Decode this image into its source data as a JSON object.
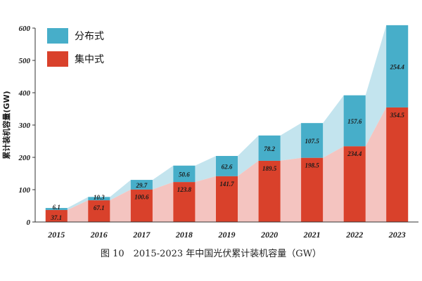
{
  "chart_data": {
    "type": "bar",
    "stacked": true,
    "categories": [
      "2015",
      "2016",
      "2017",
      "2018",
      "2019",
      "2020",
      "2021",
      "2022",
      "2023"
    ],
    "series": [
      {
        "name": "集中式",
        "color": "#d9412b",
        "area_color": "#f4c4c0",
        "values": [
          37.1,
          67.1,
          100.6,
          123.8,
          141.7,
          189.5,
          198.5,
          234.4,
          354.5
        ],
        "labels": [
          "37.1",
          "67.1",
          "100.6",
          "123.8",
          "141.7",
          "189.5",
          "198.5",
          "234.4",
          "354.5"
        ]
      },
      {
        "name": "分布式",
        "color": "#47aec9",
        "area_color": "#c3e4ee",
        "values": [
          6.1,
          10.3,
          29.7,
          50.6,
          62.6,
          78.2,
          107.5,
          157.6,
          254.4
        ],
        "labels": [
          "6.1",
          "10.3",
          "29.7",
          "50.6",
          "62.6",
          "78.2",
          "107.5",
          "157.6",
          "254.4"
        ]
      }
    ],
    "ylim": [
      0,
      600
    ],
    "yticks": [
      "0",
      "100",
      "200",
      "300",
      "400",
      "500",
      "600"
    ],
    "ylabel": "累计装机容量(GW)",
    "xlabel": "",
    "legend": {
      "position": "top-left",
      "entries": [
        "分布式",
        "集中式"
      ]
    },
    "caption": "图 10　2015-2023 年中国光伏累计装机容量（GW）"
  }
}
